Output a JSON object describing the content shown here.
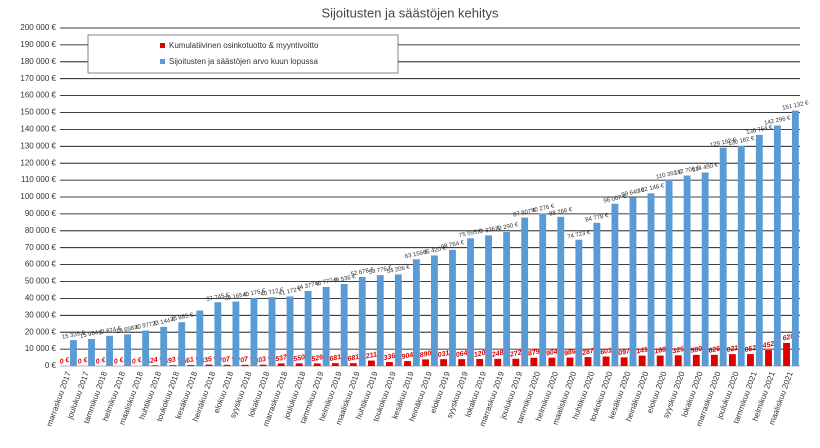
{
  "chart_data": {
    "type": "bar",
    "title": "Sijoitusten ja säästöjen kehitys",
    "categories": [
      "marraskuu 2017",
      "joulukuu 2017",
      "tammikuu 2018",
      "helmikuu 2018",
      "maaliskuu 2018",
      "huhtikuu 2018",
      "toukokuu 2018",
      "kesäkuu 2018",
      "heinäkuu 2018",
      "elokuu 2018",
      "syyskuu 2018",
      "lokakuu 2018",
      "marraskuu 2018",
      "joulukuu 2018",
      "tammikuu 2019",
      "helmikuu 2019",
      "maaliskuu 2019",
      "huhtikuu 2019",
      "toukokuu 2019",
      "kesäkuu 2019",
      "heinäkuu 2019",
      "elokuu 2019",
      "syyskuu 2019",
      "lokakuu 2019",
      "marraskuu 2019",
      "joulukuu 2019",
      "tammikuu 2020",
      "helmikuu 2020",
      "maaliskuu 2020",
      "huhtikuu 2020",
      "toukokuu 2020",
      "kesäkuu 2020",
      "heinäkuu 2020",
      "elokuu 2020",
      "syyskuu 2020",
      "lokakuu 2020",
      "marraskuu 2020",
      "joulukuu 2020",
      "tammikuu 2021",
      "helmikuu 2021",
      "maaliskuu 2021"
    ],
    "series": [
      {
        "name": "Kumulatiivinen osinkotuotto & myyntivoitto",
        "color": "#e00000",
        "values": [
          0,
          0,
          0,
          0,
          0,
          424,
          493,
          561,
          835,
          707,
          707,
          803,
          1537,
          1550,
          1526,
          1681,
          1681,
          3211,
          2336,
          2904,
          3890,
          4031,
          4064,
          4120,
          4248,
          4272,
          4879,
          4904,
          4986,
          5287,
          5601,
          5097,
          6141,
          6168,
          6325,
          6580,
          6626,
          7021,
          7052,
          9452,
          13620
        ],
        "value_labels": [
          "0 €",
          "0 €",
          "0 €",
          "0 €",
          "0 €",
          "424 €",
          "493 €",
          "561 €",
          "835 €",
          "707 €",
          "707 €",
          "803 €",
          "1 537 €",
          "1 550 €",
          "1 526 €",
          "1 681 €",
          "1 681 €",
          "3 211 €",
          "2 336 €",
          "2 904 €",
          "3 890 €",
          "4 031 €",
          "4 064 €",
          "4 120 €",
          "4 248 €",
          "4 272 €",
          "4 879 €",
          "4 904 €",
          "4 986 €",
          "5 287 €",
          "5 601 €",
          "5 097 €",
          "6 141 €",
          "6 168 €",
          "6 325 €",
          "6 580 €",
          "6 626 €",
          "7 021 €",
          "7 052 €",
          "9 452 €",
          "13 620 €"
        ]
      },
      {
        "name": "Sijoitusten ja säästöjen arvo kuun lopussa",
        "color": "#5b9bd5",
        "values": [
          15335,
          15964,
          17874,
          18698,
          20977,
          23144,
          25885,
          32800,
          37745,
          38165,
          40176,
          40712,
          41172,
          44377,
          46777,
          48536,
          52678,
          53776,
          54206,
          63156,
          65420,
          68764,
          75595,
          77336,
          79290,
          87807,
          90276,
          88266,
          74723,
          84778,
          96007,
          99640,
          102146,
          110392,
          112706,
          114490,
          129192,
          130182,
          136764,
          142296,
          151132
        ],
        "value_labels": [
          "15 335 €",
          "15 964 €",
          "17 874 €",
          "18 698 €",
          "20 977 €",
          "23 144 €",
          "25 885 €",
          null,
          "37 745 €",
          "38 165 €",
          "40 176 €",
          "40 712 €",
          "41 172 €",
          "44 377 €",
          "46 777 €",
          "48 536 €",
          "52 678 €",
          "53 776 €",
          "54 206 €",
          "63 156 €",
          "65 420 €",
          "68 764 €",
          "75 595 €",
          "77 336 €",
          "79 290 €",
          "87 807 €",
          "90 276 €",
          "88 266 €",
          "74 723 €",
          "84 778 €",
          "96 007 €",
          "99 640 €",
          "102 146 €",
          "110 392 €",
          "112 706 €",
          "114 490 €",
          "129 192 €",
          "130 182 €",
          "136 764 €",
          "142 296 €",
          "151 132 €"
        ]
      }
    ],
    "ylim": [
      0,
      200000
    ],
    "yticks": [
      {
        "value": 0,
        "label": "0 €"
      },
      {
        "value": 10000,
        "label": "10 000 €"
      },
      {
        "value": 20000,
        "label": "20 000 €"
      },
      {
        "value": 30000,
        "label": "30 000 €"
      },
      {
        "value": 40000,
        "label": "40 000 €"
      },
      {
        "value": 50000,
        "label": "50 000 €"
      },
      {
        "value": 60000,
        "label": "60 000 €"
      },
      {
        "value": 70000,
        "label": "70 000 €"
      },
      {
        "value": 80000,
        "label": "80 000 €"
      },
      {
        "value": 90000,
        "label": "90 000 €"
      },
      {
        "value": 100000,
        "label": "100 000 €"
      },
      {
        "value": 110000,
        "label": "110 000 €"
      },
      {
        "value": 120000,
        "label": "120 000 €"
      },
      {
        "value": 130000,
        "label": "130 000 €"
      },
      {
        "value": 140000,
        "label": "140 000 €"
      },
      {
        "value": 150000,
        "label": "150 000 €"
      },
      {
        "value": 160000,
        "label": "160 000 €"
      },
      {
        "value": 170000,
        "label": "170 000 €"
      },
      {
        "value": 180000,
        "label": "180 000 €"
      },
      {
        "value": 190000,
        "label": "190 000 €"
      },
      {
        "value": 200000,
        "label": "200 000 €"
      }
    ],
    "grid": true
  }
}
